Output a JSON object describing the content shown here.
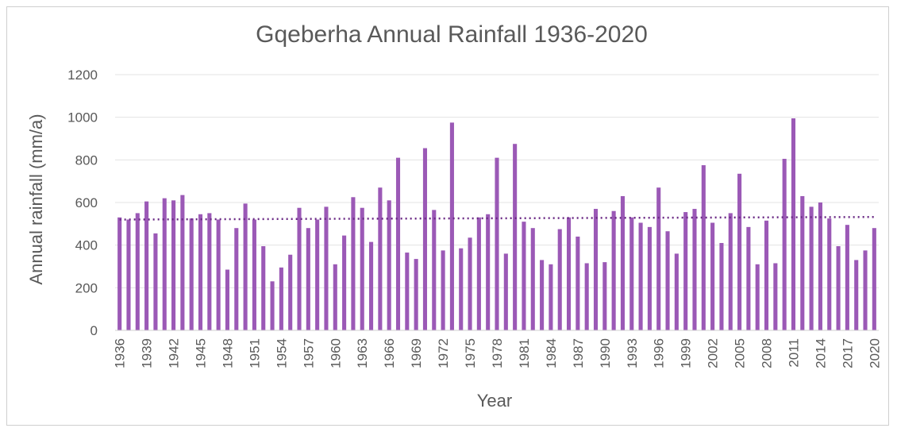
{
  "chart_data": {
    "type": "bar",
    "title": "Gqeberha Annual Rainfall 1936-2020",
    "xlabel": "Year",
    "ylabel": "Annual rainfall (mm/a)",
    "ylim": [
      0,
      1200
    ],
    "yticks": [
      0,
      200,
      400,
      600,
      800,
      1000,
      1200
    ],
    "x_tick_labels": [
      "1936",
      "1939",
      "1942",
      "1945",
      "1948",
      "1951",
      "1954",
      "1957",
      "1960",
      "1963",
      "1966",
      "1969",
      "1972",
      "1975",
      "1978",
      "1981",
      "1984",
      "1987",
      "1990",
      "1993",
      "1996",
      "1999",
      "2002",
      "2005",
      "2008",
      "2011",
      "2014",
      "2017",
      "2020"
    ],
    "grid": true,
    "legend": "none",
    "bar_color": "#9b59b6",
    "trendline": {
      "style": "dotted",
      "color": "#6b2a85",
      "start": 520,
      "end": 532
    },
    "categories": [
      "1936",
      "1937",
      "1938",
      "1939",
      "1940",
      "1941",
      "1942",
      "1943",
      "1944",
      "1945",
      "1946",
      "1947",
      "1948",
      "1949",
      "1950",
      "1951",
      "1952",
      "1953",
      "1954",
      "1955",
      "1956",
      "1957",
      "1958",
      "1959",
      "1960",
      "1961",
      "1962",
      "1963",
      "1964",
      "1965",
      "1966",
      "1967",
      "1968",
      "1969",
      "1970",
      "1971",
      "1972",
      "1973",
      "1974",
      "1975",
      "1976",
      "1977",
      "1978",
      "1979",
      "1980",
      "1981",
      "1982",
      "1983",
      "1984",
      "1985",
      "1986",
      "1987",
      "1988",
      "1989",
      "1990",
      "1991",
      "1992",
      "1993",
      "1994",
      "1995",
      "1996",
      "1997",
      "1998",
      "1999",
      "2000",
      "2001",
      "2002",
      "2003",
      "2004",
      "2005",
      "2006",
      "2007",
      "2008",
      "2009",
      "2010",
      "2011",
      "2012",
      "2013",
      "2014",
      "2015",
      "2016",
      "2017",
      "2018",
      "2019",
      "2020"
    ],
    "values": [
      530,
      520,
      550,
      605,
      455,
      620,
      610,
      635,
      525,
      545,
      550,
      520,
      285,
      480,
      595,
      520,
      395,
      230,
      295,
      355,
      575,
      480,
      520,
      580,
      310,
      445,
      625,
      575,
      415,
      670,
      610,
      810,
      365,
      335,
      855,
      565,
      375,
      975,
      385,
      435,
      530,
      545,
      810,
      360,
      875,
      510,
      480,
      330,
      310,
      475,
      530,
      440,
      315,
      570,
      320,
      560,
      630,
      530,
      505,
      485,
      670,
      465,
      360,
      555,
      570,
      775,
      505,
      410,
      550,
      735,
      485,
      310,
      515,
      315,
      805,
      995,
      630,
      580,
      600,
      525,
      395,
      495,
      330,
      375,
      480
    ]
  }
}
